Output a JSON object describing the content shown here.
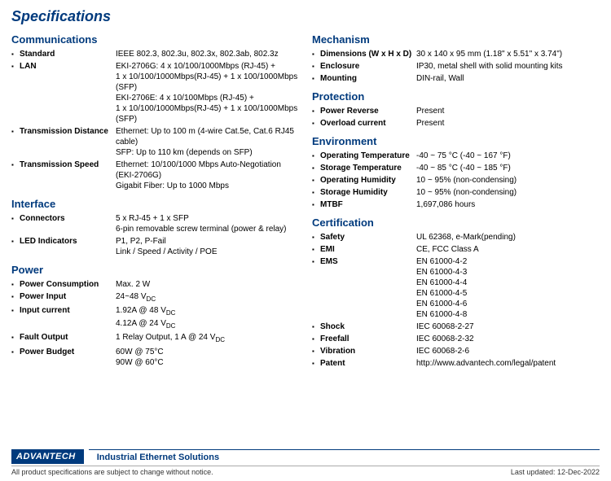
{
  "title": "Specifications",
  "left": [
    {
      "type": "section",
      "text": "Communications",
      "first": true
    },
    {
      "type": "row",
      "label": "Standard",
      "value": "IEEE 802.3, 802.3u, 802.3x, 802.3ab, 802.3z"
    },
    {
      "type": "row",
      "label": "LAN",
      "value": "EKI-2706G: 4 x 10/100/1000Mbps (RJ-45) +\n1 x 10/100/1000Mbps(RJ-45) + 1 x 100/1000Mbps (SFP)\nEKI-2706E: 4 x 10/100Mbps (RJ-45) +\n1 x 10/100/1000Mbps(RJ-45) + 1 x 100/1000Mbps (SFP)"
    },
    {
      "type": "row",
      "label": "Transmission Distance",
      "value": "Ethernet: Up to 100 m (4-wire Cat.5e, Cat.6 RJ45 cable)\nSFP: Up to 110 km (depends on SFP)"
    },
    {
      "type": "row",
      "label": "Transmission Speed",
      "value": "Ethernet: 10/100/1000 Mbps Auto-Negotiation\n(EKI-2706G)\nGigabit Fiber: Up to 1000 Mbps"
    },
    {
      "type": "section",
      "text": "Interface"
    },
    {
      "type": "row",
      "label": "Connectors",
      "value": "5 x RJ-45 + 1 x SFP\n6-pin removable screw terminal (power & relay)"
    },
    {
      "type": "row",
      "label": "LED Indicators",
      "value": "P1, P2, P-Fail\nLink / Speed / Activity / POE"
    },
    {
      "type": "section",
      "text": "Power"
    },
    {
      "type": "row",
      "label": "Power Consumption",
      "value": "Max. 2 W"
    },
    {
      "type": "row",
      "label": "Power Input",
      "value": "24~48 V",
      "sub": "DC"
    },
    {
      "type": "row",
      "label": "Input current",
      "value": "1.92A @ 48 V",
      "sub": "DC",
      "extra": "4.12A @ 24 V",
      "extraSub": "DC"
    },
    {
      "type": "row",
      "label": "Fault Output",
      "value": "1 Relay Output, 1 A @ 24 V",
      "sub": "DC"
    },
    {
      "type": "row",
      "label": "Power Budget",
      "value": "60W @ 75°C\n90W @ 60°C"
    }
  ],
  "right": [
    {
      "type": "section",
      "text": "Mechanism",
      "first": true
    },
    {
      "type": "row",
      "label": "Dimensions (W x H x D)",
      "value": "30 x 140 x 95 mm (1.18\" x 5.51\" x 3.74\")"
    },
    {
      "type": "row",
      "label": "Enclosure",
      "value": "IP30, metal shell with solid mounting kits"
    },
    {
      "type": "row",
      "label": "Mounting",
      "value": "DIN-rail, Wall"
    },
    {
      "type": "section",
      "text": "Protection"
    },
    {
      "type": "row",
      "label": "Power Reverse",
      "value": "Present"
    },
    {
      "type": "row",
      "label": "Overload current",
      "value": "Present"
    },
    {
      "type": "section",
      "text": "Environment"
    },
    {
      "type": "row",
      "label": "Operating Temperature",
      "value": "-40 ~ 75 °C (-40 ~ 167 °F)"
    },
    {
      "type": "row",
      "label": "Storage Temperature",
      "value": "-40 ~ 85 °C (-40 ~ 185 °F)"
    },
    {
      "type": "row",
      "label": "Operating Humidity",
      "value": "10 ~ 95% (non-condensing)"
    },
    {
      "type": "row",
      "label": "Storage Humidity",
      "value": "10 ~ 95% (non-condensing)"
    },
    {
      "type": "row",
      "label": "MTBF",
      "value": "1,697,086 hours"
    },
    {
      "type": "section",
      "text": "Certification"
    },
    {
      "type": "row",
      "label": "Safety",
      "value": "UL 62368, e-Mark(pending)"
    },
    {
      "type": "row",
      "label": "EMI",
      "value": "CE, FCC Class A"
    },
    {
      "type": "row",
      "label": "EMS",
      "value": "EN 61000-4-2\nEN 61000-4-3\nEN 61000-4-4\nEN 61000-4-5\nEN 61000-4-6\nEN 61000-4-8"
    },
    {
      "type": "row",
      "label": "Shock",
      "value": "IEC 60068-2-27"
    },
    {
      "type": "row",
      "label": "Freefall",
      "value": "IEC 60068-2-32"
    },
    {
      "type": "row",
      "label": "Vibration",
      "value": "IEC 60068-2-6"
    },
    {
      "type": "row",
      "label": "Patent",
      "value": "http://www.advantech.com/legal/patent"
    }
  ],
  "footer": {
    "brand": "ADVANTECH",
    "tagline": "Industrial Ethernet Solutions",
    "disclaimer": "All product specifications are subject to change without notice.",
    "updated": "Last updated: 12-Dec-2022"
  }
}
